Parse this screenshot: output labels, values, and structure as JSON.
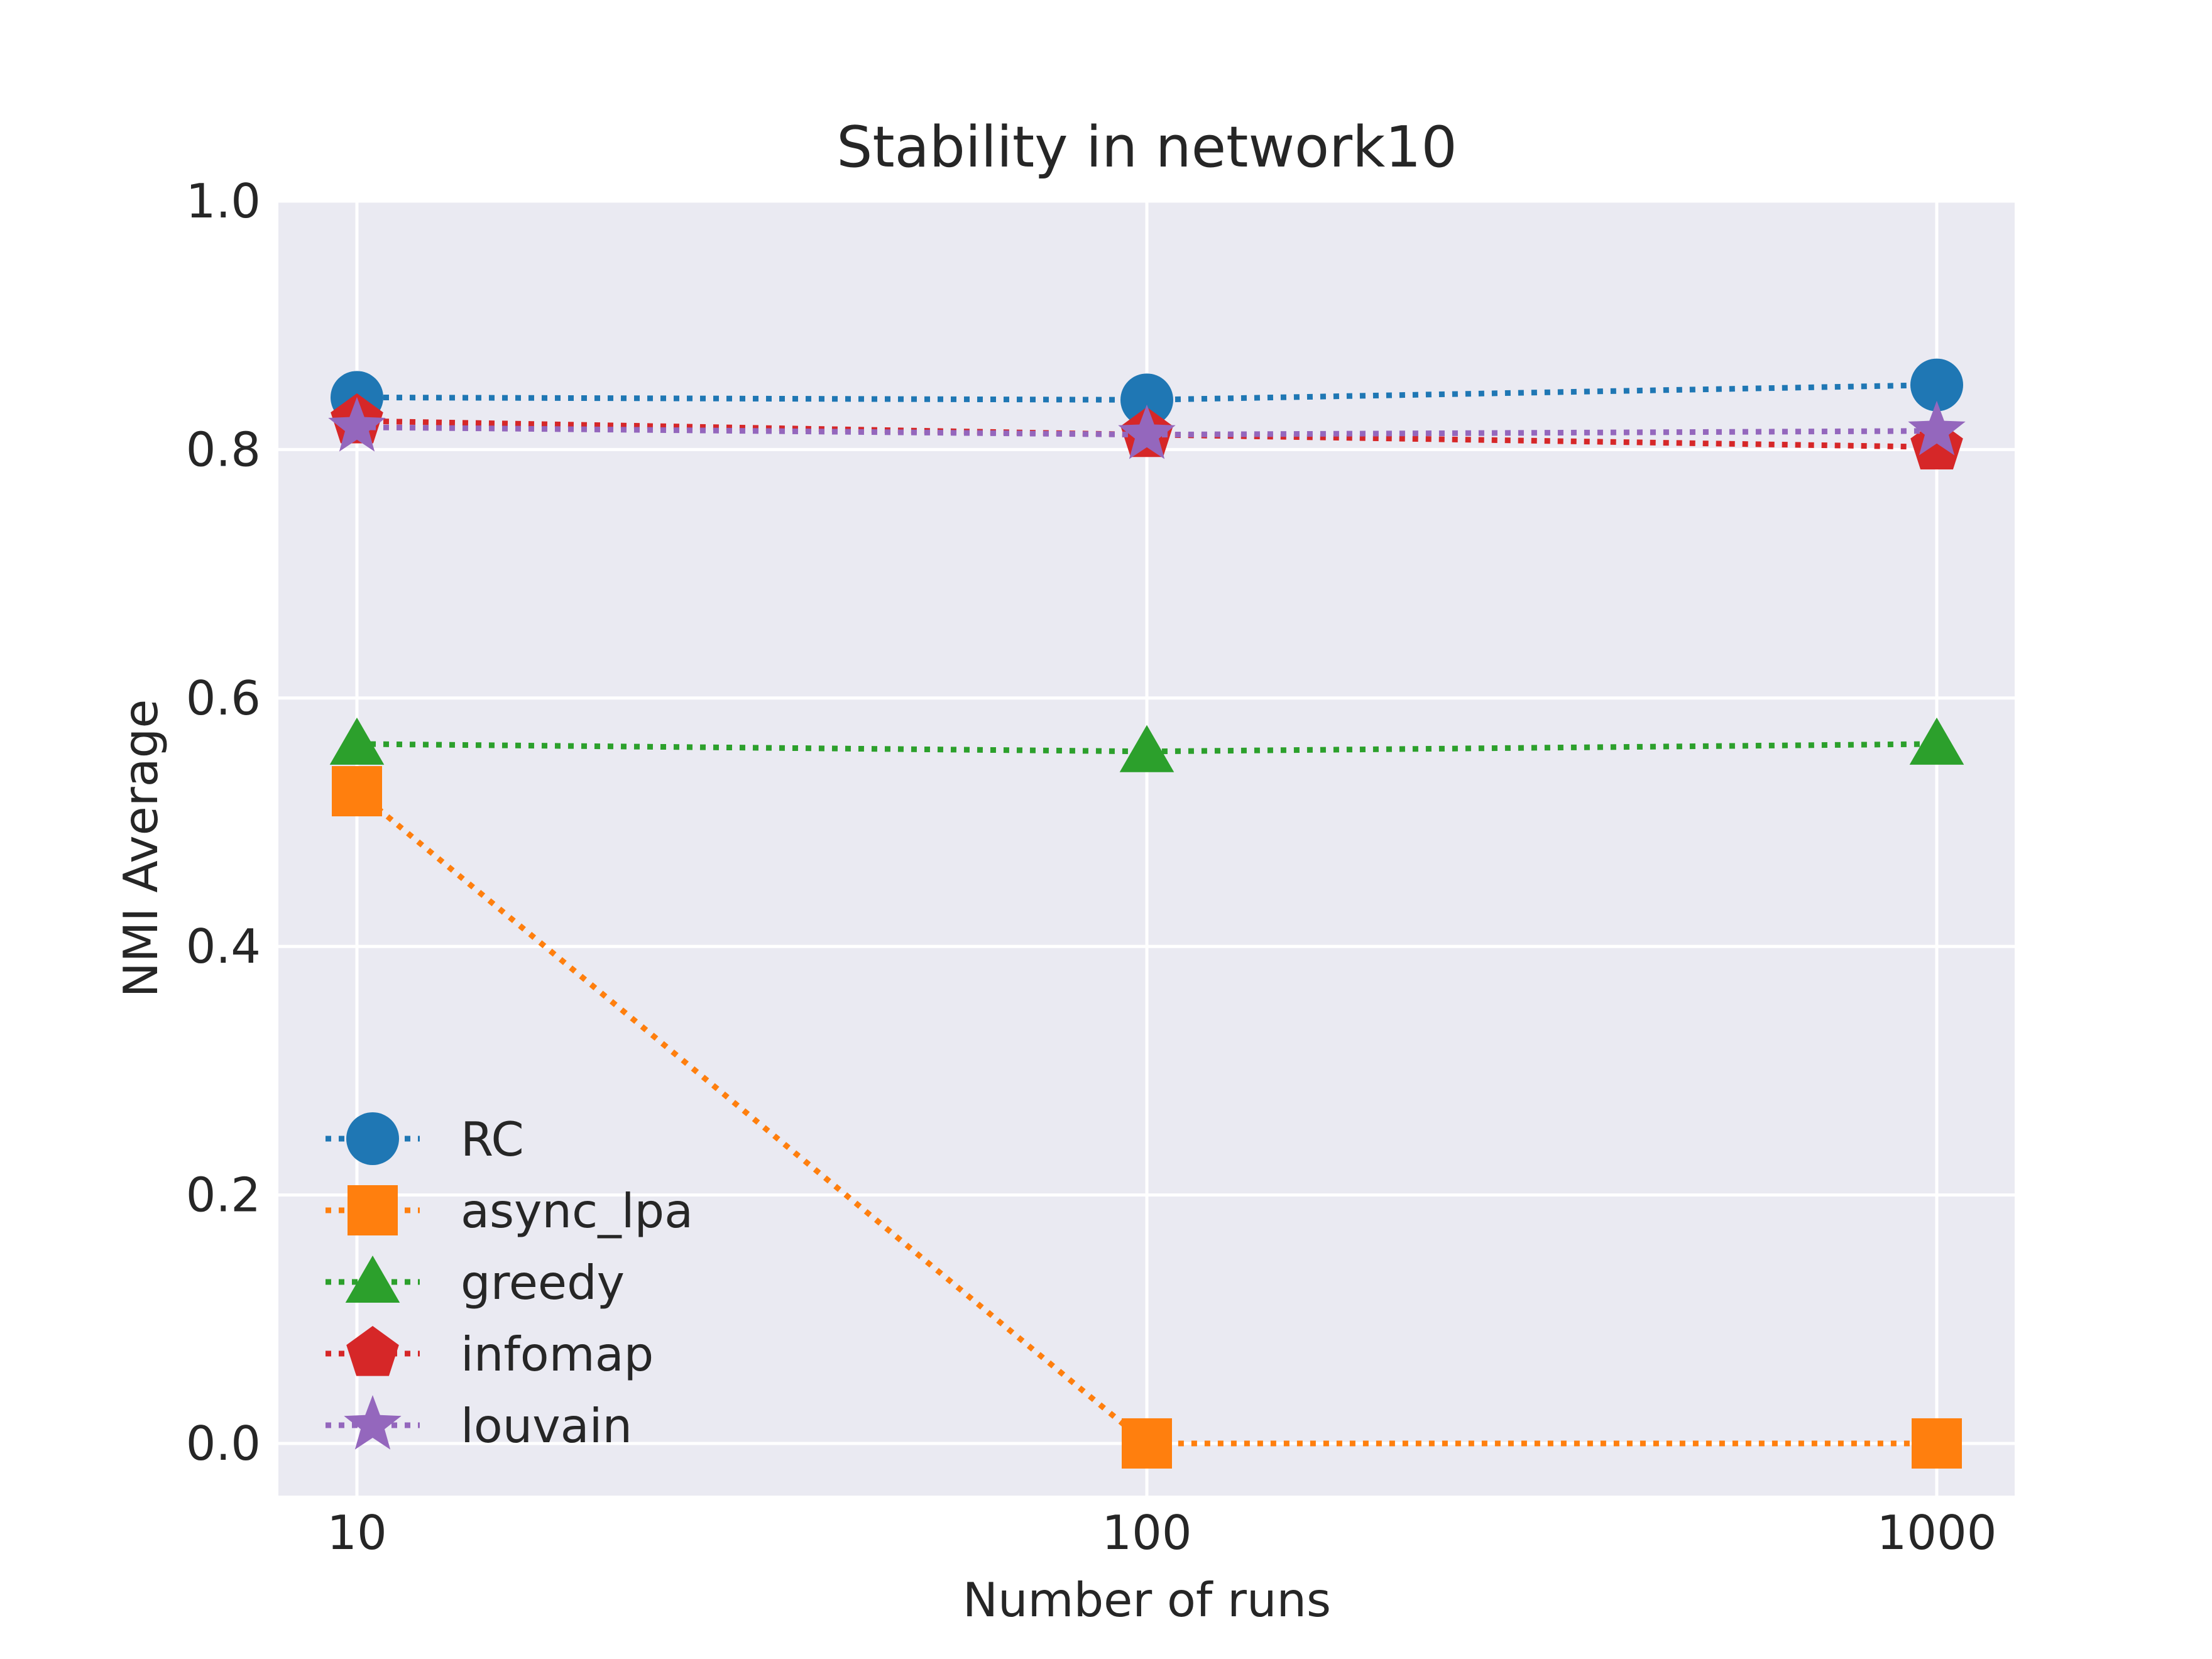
{
  "chart_data": {
    "type": "line",
    "title": "Stability in network10",
    "xlabel": "Number of runs",
    "ylabel": "NMI Average",
    "x_scale": "log",
    "x": [
      10,
      100,
      1000
    ],
    "x_tick_labels": [
      "10",
      "100",
      "1000"
    ],
    "ylim": [
      -0.042,
      1.0
    ],
    "y_ticks": [
      0.0,
      0.2,
      0.4,
      0.6,
      0.8,
      1.0
    ],
    "y_tick_labels": [
      "0.0",
      "0.2",
      "0.4",
      "0.6",
      "0.8",
      "1.0"
    ],
    "grid": true,
    "legend_position": "lower-left",
    "series": [
      {
        "name": "RC",
        "values": [
          0.842,
          0.84,
          0.852
        ],
        "color": "#1f77b4",
        "marker": "circle"
      },
      {
        "name": "async_lpa",
        "values": [
          0.525,
          0.0,
          0.0
        ],
        "color": "#ff7f0e",
        "marker": "square"
      },
      {
        "name": "greedy",
        "values": [
          0.563,
          0.557,
          0.563
        ],
        "color": "#2ca02c",
        "marker": "triangle"
      },
      {
        "name": "infomap",
        "values": [
          0.823,
          0.812,
          0.802
        ],
        "color": "#d62728",
        "marker": "pentagon"
      },
      {
        "name": "louvain",
        "values": [
          0.818,
          0.812,
          0.815
        ],
        "color": "#9467bd",
        "marker": "star"
      }
    ]
  },
  "colors": {
    "plot_background": "#eaeaf2",
    "grid": "#ffffff",
    "text": "#262626"
  }
}
